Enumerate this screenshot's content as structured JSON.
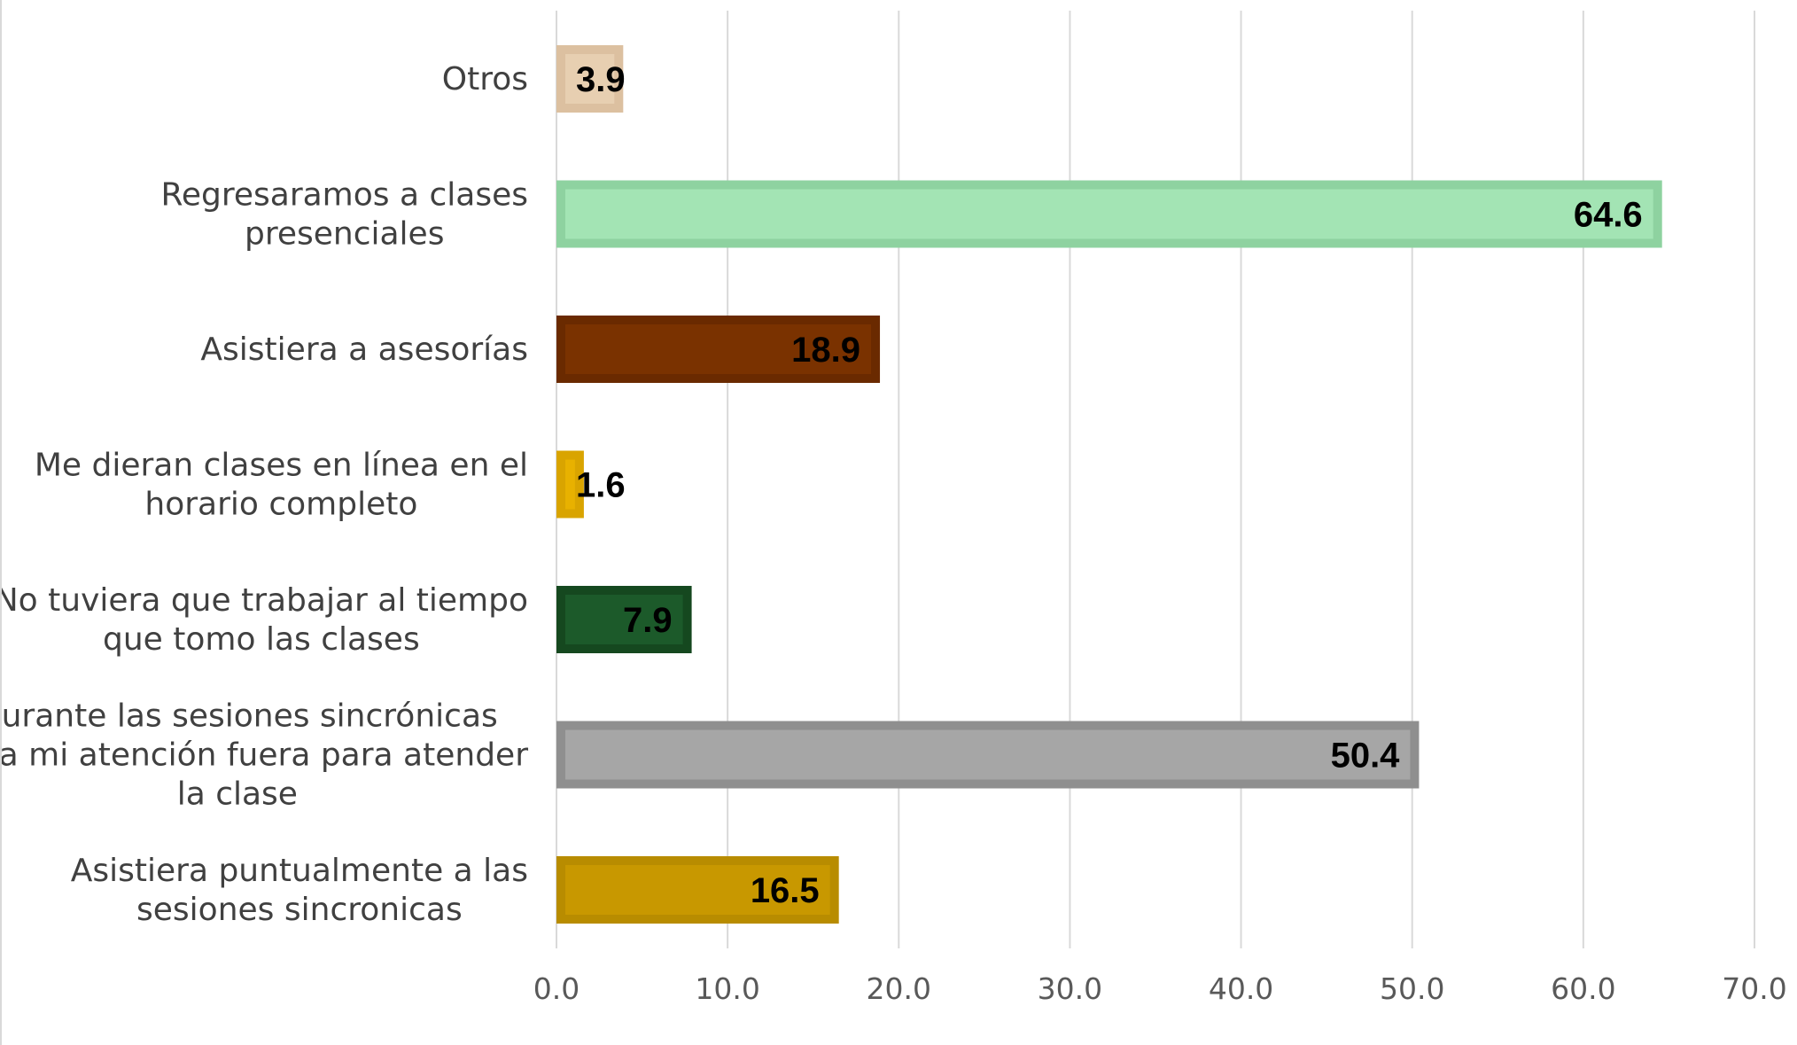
{
  "chart_data": {
    "type": "bar",
    "orientation": "horizontal",
    "title": "",
    "xlabel": "",
    "ylabel": "",
    "xlim": [
      0,
      70
    ],
    "x_ticks": [
      "0.0",
      "10.0",
      "20.0",
      "30.0",
      "40.0",
      "50.0",
      "60.0",
      "70.0"
    ],
    "grid": true,
    "legend": "none",
    "categories": [
      "Otros",
      "Regresaramos a clases presenciales",
      "Asistiera a asesorías",
      "Me dieran clases en línea en el horario completo",
      "No tuviera que trabajar al tiempo que tomo las clases",
      "Durante las sesiones sincrónicas toda mi atención fuera para atender la clase",
      "Asistiera puntualmente a las sesiones sincronicas"
    ],
    "category_label_lines": [
      [
        "Otros"
      ],
      [
        "Regresaramos a clases",
        "presenciales"
      ],
      [
        "Asistiera a asesorías"
      ],
      [
        "Me dieran clases en línea en el",
        "horario completo"
      ],
      [
        "No tuviera que trabajar al tiempo",
        "que tomo las clases"
      ],
      [
        "Durante las sesiones sincrónicas",
        "toda mi atención fuera para atender",
        "la clase"
      ],
      [
        "Asistiera puntualmente a las",
        "sesiones sincronicas"
      ]
    ],
    "values": [
      3.9,
      64.6,
      18.9,
      1.6,
      7.9,
      50.4,
      16.5
    ],
    "value_labels": [
      "3.9",
      "64.6",
      "18.9",
      "1.6",
      "7.9",
      "50.4",
      "16.5"
    ],
    "bar_colors": [
      "#e7cfb1",
      "#a3e4b4",
      "#7a3200",
      "#e8b100",
      "#1c5a2a",
      "#a6a6a6",
      "#c89800"
    ],
    "bar_border_colors": [
      "#dcc0a0",
      "#8ed2a0",
      "#6a2a00",
      "#d9a400",
      "#15481f",
      "#8f8f8f",
      "#b88c00"
    ]
  }
}
